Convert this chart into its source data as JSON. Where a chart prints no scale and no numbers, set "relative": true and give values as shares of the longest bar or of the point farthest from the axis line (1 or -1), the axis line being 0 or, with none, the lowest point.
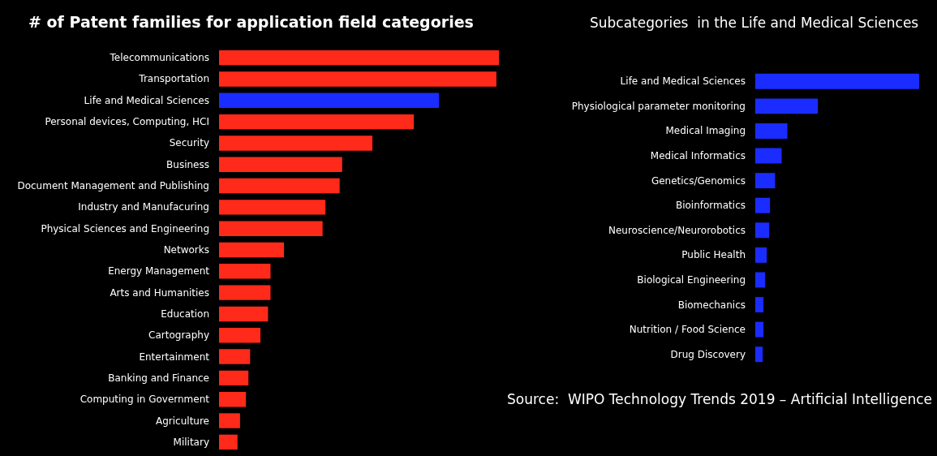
{
  "chart_data": [
    {
      "type": "bar",
      "orientation": "horizontal",
      "relative": true,
      "title": "# of Patent families for application field categories",
      "categories": [
        "Telecommunications",
        "Transportation",
        "Life and Medical Sciences",
        "Personal devices, Computing, HCI",
        "Security",
        "Business",
        "Document Management and Publishing",
        "Industry and Manufacuring",
        "Physical Sciences and Engineering",
        "Networks",
        "Energy Management",
        "Arts and Humanities",
        "Education",
        "Cartography",
        "Entertainment",
        "Banking and Finance",
        "Computing in Government",
        "Agriculture",
        "Military"
      ],
      "values": [
        1,
        0.991,
        0.786,
        0.696,
        0.548,
        0.44,
        0.431,
        0.38,
        0.37,
        0.232,
        0.184,
        0.184,
        0.175,
        0.148,
        0.111,
        0.105,
        0.096,
        0.075,
        0.066
      ],
      "colors": [
        "#ff2a1a",
        "#ff2a1a",
        "#1a2cff",
        "#ff2a1a",
        "#ff2a1a",
        "#ff2a1a",
        "#ff2a1a",
        "#ff2a1a",
        "#ff2a1a",
        "#ff2a1a",
        "#ff2a1a",
        "#ff2a1a",
        "#ff2a1a",
        "#ff2a1a",
        "#ff2a1a",
        "#ff2a1a",
        "#ff2a1a",
        "#ff2a1a",
        "#ff2a1a"
      ]
    },
    {
      "type": "bar",
      "orientation": "horizontal",
      "relative": true,
      "title": "Subcategories  in the Life and Medical Sciences",
      "categories": [
        "Life and Medical Sciences",
        "Physiological parameter monitoring",
        "Medical Imaging",
        "Medical Informatics",
        "Genetics/Genomics",
        "Bioinformatics",
        "Neuroscience/Neurorobotics",
        "Public Health",
        "Biological Engineering",
        "Biomechanics",
        "Nutrition / Food Science",
        "Drug Discovery"
      ],
      "values": [
        1,
        0.382,
        0.196,
        0.161,
        0.121,
        0.09,
        0.085,
        0.07,
        0.06,
        0.05,
        0.05,
        0.045
      ],
      "colors": [
        "#1a2cff",
        "#1a2cff",
        "#1a2cff",
        "#1a2cff",
        "#1a2cff",
        "#1a2cff",
        "#1a2cff",
        "#1a2cff",
        "#1a2cff",
        "#1a2cff",
        "#1a2cff",
        "#1a2cff"
      ],
      "annotations": [
        "Source:  WIPO Technology Trends 2019 – Artificial Intelligence"
      ]
    }
  ]
}
